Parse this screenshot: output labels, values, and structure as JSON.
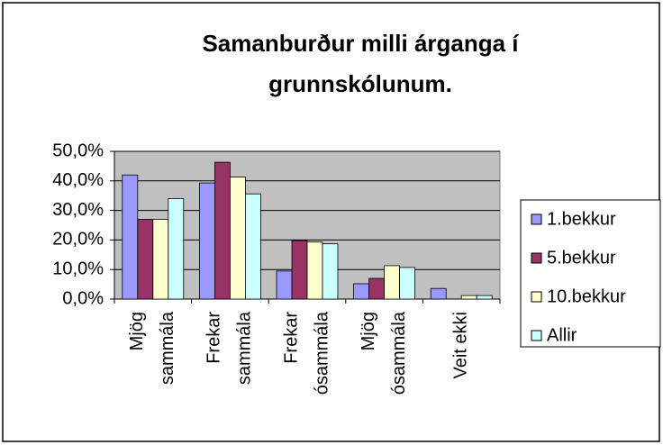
{
  "chart_data": {
    "type": "bar",
    "title": [
      "Samanburður milli árganga í",
      "grunnskólunum."
    ],
    "categories": [
      [
        "Mjög",
        "sammála"
      ],
      [
        "Frekar",
        "sammála"
      ],
      [
        "Frekar",
        "ósammála"
      ],
      [
        "Mjög",
        "ósammála"
      ],
      [
        "Veit ekki"
      ]
    ],
    "series": [
      {
        "name": "1.bekkur",
        "color": "#9999ff",
        "values": [
          42,
          39.3,
          9.5,
          5.2,
          3.6
        ]
      },
      {
        "name": "5.bekkur",
        "color": "#993366",
        "values": [
          27,
          46.3,
          19.8,
          7,
          0
        ]
      },
      {
        "name": "10.bekkur",
        "color": "#ffffcc",
        "values": [
          27,
          41.3,
          19.3,
          11.3,
          1.2
        ]
      },
      {
        "name": "Allir",
        "color": "#ccffff",
        "values": [
          34,
          35.6,
          18.7,
          10.7,
          1.2
        ]
      }
    ],
    "ylim": [
      0,
      50
    ],
    "yticks": [
      {
        "value": 0,
        "label": "0,0%"
      },
      {
        "value": 10,
        "label": "10,0%"
      },
      {
        "value": 20,
        "label": "20,0%"
      },
      {
        "value": 30,
        "label": "30,0%"
      },
      {
        "value": 40,
        "label": "40,0%"
      },
      {
        "value": 50,
        "label": "50,0%"
      }
    ],
    "grid": true,
    "legend": "right"
  }
}
